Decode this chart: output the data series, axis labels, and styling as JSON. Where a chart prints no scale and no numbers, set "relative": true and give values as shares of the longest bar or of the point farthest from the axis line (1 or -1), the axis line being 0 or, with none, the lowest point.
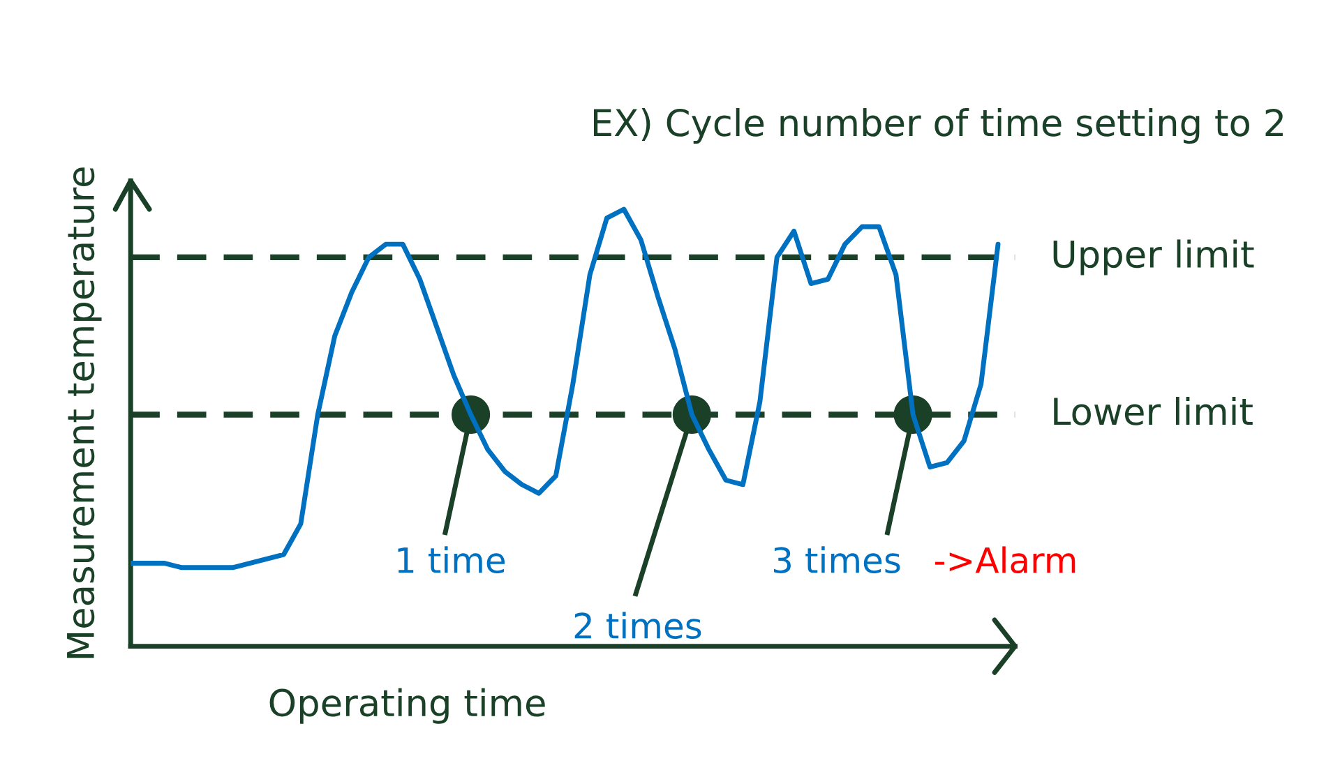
{
  "chart_data": {
    "type": "line",
    "relative": true,
    "title": "EX) Cycle number of time setting to 2",
    "xlabel": "Operating time",
    "ylabel": "Measurement temperature",
    "categories": [
      null,
      null,
      null,
      null,
      null,
      null,
      null,
      null,
      null,
      null,
      null,
      null,
      null,
      null,
      null,
      null,
      null,
      null,
      null,
      null,
      null,
      null,
      null,
      null,
      null,
      null,
      null,
      null,
      null,
      null,
      null,
      null,
      null,
      null,
      null,
      null,
      null,
      null,
      null,
      null,
      null,
      null,
      null,
      null,
      null,
      null,
      null,
      null,
      null,
      null,
      null,
      null
    ],
    "series": [
      {
        "color": "#0070c0",
        "values": [
          0.19,
          0.19,
          0.19,
          0.18,
          0.18,
          0.18,
          0.18,
          0.19,
          0.2,
          0.21,
          0.28,
          0.53,
          0.71,
          0.81,
          0.89,
          0.92,
          0.92,
          0.84,
          0.73,
          0.62,
          0.53,
          0.45,
          0.4,
          0.37,
          0.35,
          0.39,
          0.6,
          0.85,
          0.98,
          1.0,
          0.93,
          0.8,
          0.68,
          0.53,
          0.45,
          0.38,
          0.37,
          0.56,
          0.89,
          0.95,
          0.83,
          0.84,
          0.92,
          0.96,
          0.96,
          0.85,
          0.53,
          0.41,
          0.42,
          0.47,
          0.6,
          0.92
        ]
      }
    ],
    "ref_lines": [
      {
        "axis": "y",
        "value": 0.89,
        "label": "Upper limit",
        "color": "#1a4028",
        "line_style": "dashed"
      },
      {
        "axis": "y",
        "value": 0.53,
        "label": "Lower limit",
        "color": "#1a4028",
        "line_style": "dashed"
      }
    ],
    "annotations": [
      "1 time",
      "2 times",
      "3 times",
      "->Alarm"
    ],
    "marker": "none",
    "line_style": "solid",
    "legend": false
  }
}
